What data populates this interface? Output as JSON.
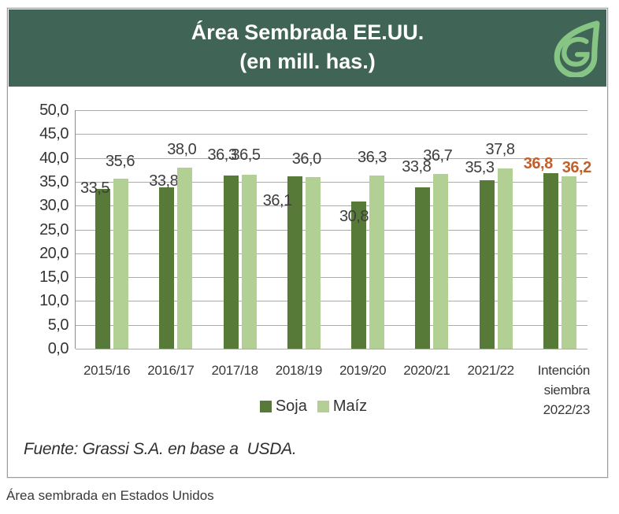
{
  "header": {
    "title_line1": "Área Sembrada EE.UU.",
    "title_line2": "(en mill. has.)",
    "logo_color": "#87c585",
    "background_color": "#406557"
  },
  "chart_data": {
    "type": "bar",
    "title": "Área Sembrada EE.UU. (en mill. has.)",
    "categories": [
      "2015/16",
      "2016/17",
      "2017/18",
      "2018/19",
      "2019/20",
      "2020/21",
      "2021/22",
      "Intención siembra 2022/23"
    ],
    "series": [
      {
        "name": "Soja",
        "color": "#577a38",
        "values": [
          33.5,
          33.8,
          36.3,
          36.1,
          30.8,
          33.8,
          35.3,
          36.8
        ],
        "labels": [
          "33,5",
          "33,8",
          "36,3",
          "36,1",
          "30,8",
          "33,8",
          "35,3",
          "36,8"
        ]
      },
      {
        "name": "Maíz",
        "color": "#b2d093",
        "values": [
          35.6,
          38.0,
          36.5,
          36.0,
          36.3,
          36.7,
          37.8,
          36.2
        ],
        "labels": [
          "35,6",
          "38,0",
          "36,5",
          "36,0",
          "36,3",
          "36,7",
          "37,8",
          "36,2"
        ]
      }
    ],
    "ylim": [
      0,
      50
    ],
    "ytick_step": 5,
    "ytick_labels": [
      "50,0",
      "45,0",
      "40,0",
      "35,0",
      "30,0",
      "25,0",
      "20,0",
      "15,0",
      "10,0",
      "5,0",
      "0,0"
    ],
    "grid": true,
    "legend_position": "bottom-center",
    "projection_index": 7,
    "value_label_color": "#3d3d3d",
    "projection_label_color": "#c2602c",
    "grid_color": "#ababab"
  },
  "footer": {
    "source": "Fuente: Grassi S.A. en base a  USDA."
  },
  "caption": "Área sembrada en Estados Unidos"
}
